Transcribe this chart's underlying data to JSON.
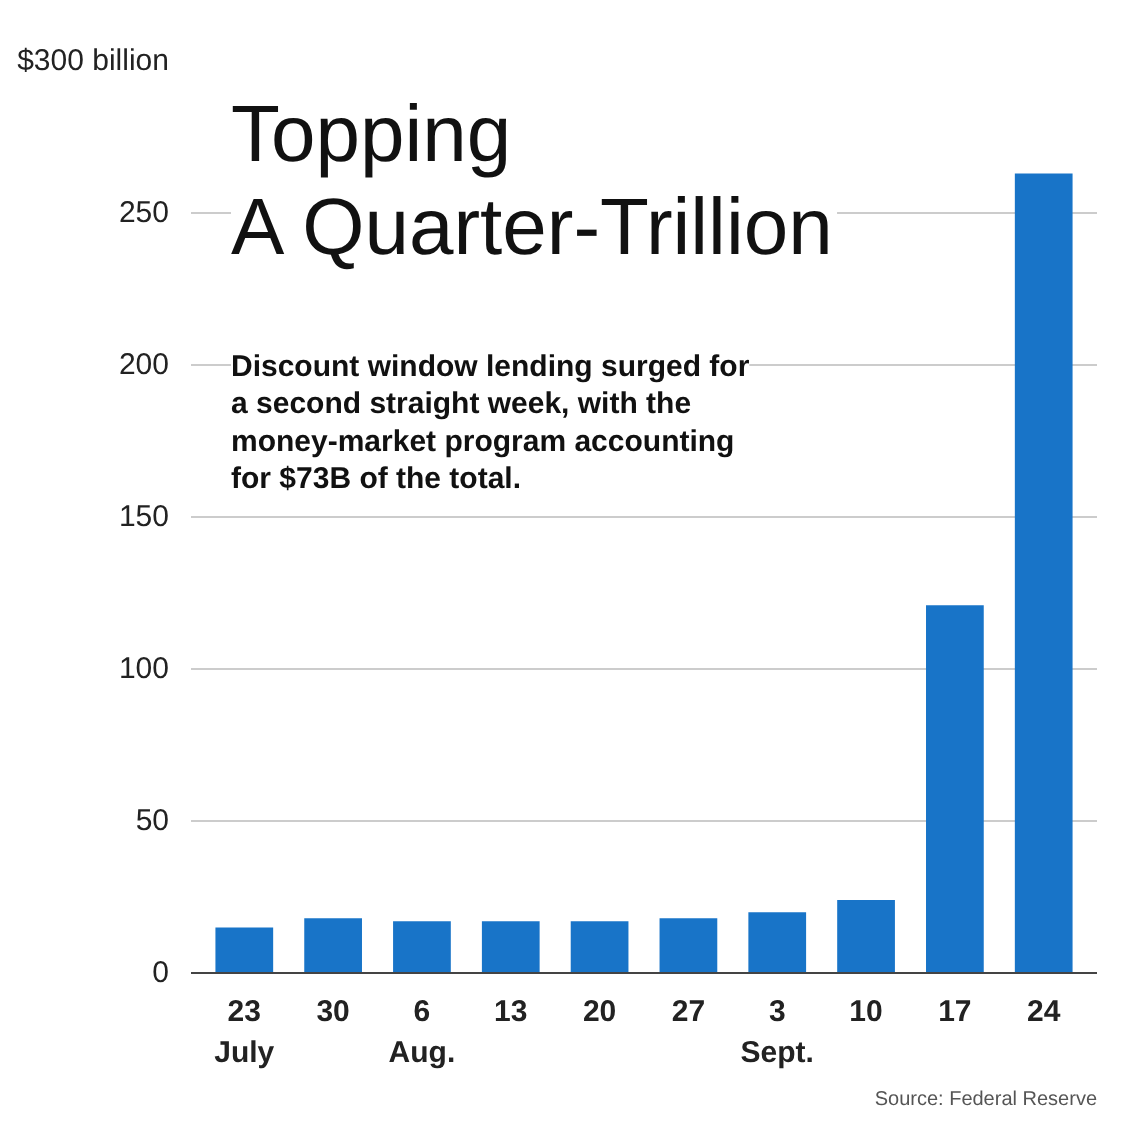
{
  "chart_data": {
    "type": "bar",
    "title": "Topping\nA Quarter-Trillion",
    "subtitle": "Discount window lending surged for\na second straight week, with the\nmoney-market program accounting\nfor $73B of the total.",
    "categories": [
      "23\nJuly",
      "30",
      "6\nAug.",
      "13",
      "20",
      "27",
      "3\nSept.",
      "10",
      "17",
      "24"
    ],
    "values": [
      15,
      18,
      17,
      17,
      17,
      18,
      20,
      24,
      121,
      263
    ],
    "color": "#1874c8",
    "ylim": [
      0,
      300
    ],
    "yticks": [
      0,
      50,
      100,
      150,
      200,
      250,
      {
        "value": 300,
        "label": "$300 billion"
      }
    ],
    "grid": "y",
    "annotations": [
      "Source: Federal Reserve"
    ]
  }
}
